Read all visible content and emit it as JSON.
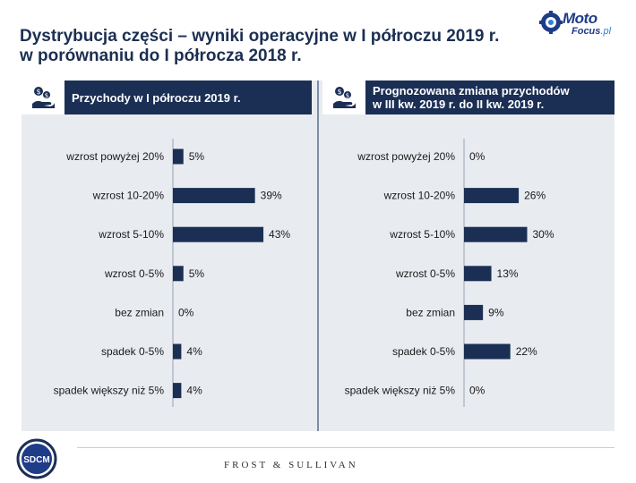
{
  "title": {
    "line1": "Dystrybucja części – wyniki operacyjne w I półroczu 2019 r.",
    "line2": "w porównaniu do I półrocza 2018 r."
  },
  "logo": {
    "moto": "Moto",
    "focus": "Focus",
    "pl": ".pl",
    "icon": "motofocus-gear-logo-icon",
    "color": "#1f3c88"
  },
  "colors": {
    "bar": "#1b2f55",
    "panel_background": "#e8ebf0",
    "header_background": "#1b2f55",
    "title": "#1c2f52"
  },
  "panels": [
    {
      "icon": "money-hand-icon",
      "header_line1": "Przychody w I półroczu 2019 r.",
      "header_line2": ""
    },
    {
      "icon": "money-hand-icon",
      "header_line1": "Prognozowana zmiana przychodów",
      "header_line2": "w III kw. 2019 r. do II kw. 2019 r."
    }
  ],
  "chart_data": [
    {
      "type": "bar",
      "orientation": "horizontal",
      "title": "Przychody w I półroczu 2019 r.",
      "categories": [
        "wzrost powyżej 20%",
        "wzrost 10-20%",
        "wzrost 5-10%",
        "wzrost 0-5%",
        "bez zmian",
        "spadek 0-5%",
        "spadek większy niż 5%"
      ],
      "values": [
        5,
        39,
        43,
        5,
        0,
        4,
        4
      ],
      "value_labels": [
        "5%",
        "39%",
        "43%",
        "5%",
        "0%",
        "4%",
        "4%"
      ],
      "unit": "%",
      "xlim": [
        0,
        50
      ],
      "grid": false,
      "legend": "none"
    },
    {
      "type": "bar",
      "orientation": "horizontal",
      "title": "Prognozowana zmiana przychodów w III kw. 2019 r. do II kw. 2019 r.",
      "categories": [
        "wzrost powyżej 20%",
        "wzrost 10-20%",
        "wzrost 5-10%",
        "wzrost 0-5%",
        "bez zmian",
        "spadek 0-5%",
        "spadek większy niż 5%"
      ],
      "values": [
        0,
        26,
        30,
        13,
        9,
        22,
        0
      ],
      "value_labels": [
        "0%",
        "26%",
        "30%",
        "13%",
        "9%",
        "22%",
        "0%"
      ],
      "unit": "%",
      "xlim": [
        0,
        50
      ],
      "grid": false,
      "legend": "none"
    }
  ],
  "footer": {
    "left_logo_text": "SDCM",
    "right_text": "FROST & SULLIVAN"
  }
}
